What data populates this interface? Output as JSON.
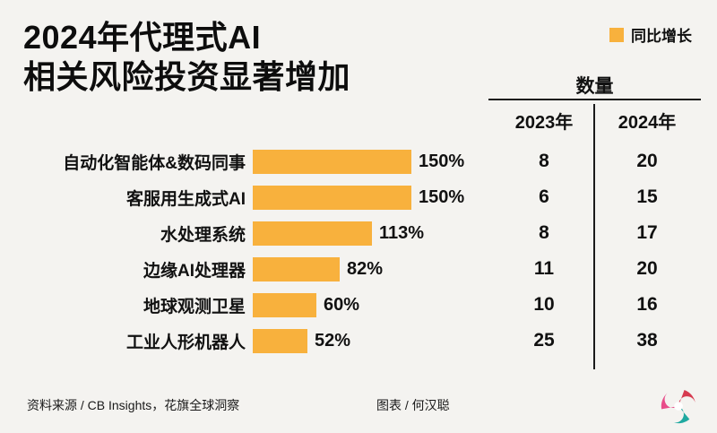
{
  "header": {
    "title_line1": "2024年代理式AI",
    "title_line2": "相关风险投资显著增加"
  },
  "legend": {
    "label": "同比增长",
    "swatch_color": "#F8B13D"
  },
  "table": {
    "header": "数量",
    "col_2023": "2023年",
    "col_2024": "2024年"
  },
  "chart_data": {
    "type": "bar",
    "orientation": "horizontal",
    "title": "2024年代理式AI相关风险投资显著增加",
    "categories": [
      "自动化智能体&数码同事",
      "客服用生成式AI",
      "水处理系统",
      "边缘AI处理器",
      "地球观测卫星",
      "工业人形机器人"
    ],
    "series": [
      {
        "name": "同比增长",
        "unit": "%",
        "values": [
          150,
          150,
          113,
          82,
          60,
          52
        ]
      },
      {
        "name": "2023年",
        "values": [
          8,
          6,
          8,
          11,
          10,
          25
        ]
      },
      {
        "name": "2024年",
        "values": [
          20,
          15,
          17,
          20,
          16,
          38
        ]
      }
    ],
    "value_labels": [
      "150%",
      "150%",
      "113%",
      "82%",
      "60%",
      "52%"
    ],
    "bar_color": "#F8B13D",
    "xlim": [
      0,
      160
    ],
    "grid": false,
    "legend_position": "top-right"
  },
  "footer": {
    "source": "资料来源 / CB Insights，花旗全球洞察",
    "credit": "图表 / 何汉聪"
  }
}
